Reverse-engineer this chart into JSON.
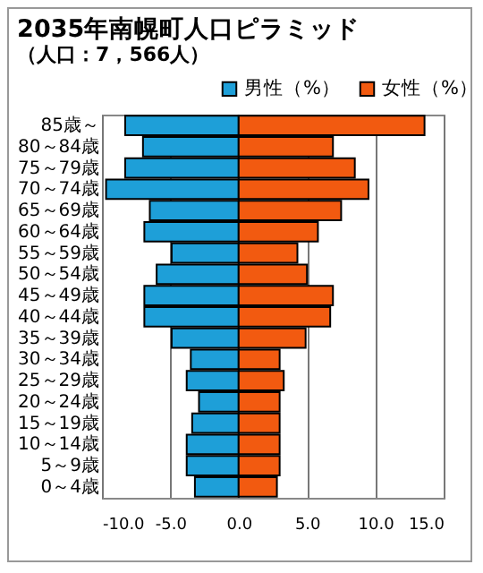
{
  "chart_data": {
    "type": "bar",
    "orientation": "horizontal",
    "title": "2035年南幌町人口ピラミッド",
    "subtitle": "（人口：7，566人）",
    "categories": [
      "85歳～",
      "80～84歳",
      "75～79歳",
      "70～74歳",
      "65～69歳",
      "60～64歳",
      "55～59歳",
      "50～54歳",
      "45～49歳",
      "40～44歳",
      "35～39歳",
      "30～34歳",
      "25～29歳",
      "20～24歳",
      "15～19歳",
      "10～14歳",
      "5～9歳",
      "0～4歳"
    ],
    "series": [
      {
        "name": "男性（%）",
        "color": "#1e9fd8",
        "values": [
          -8.3,
          -7.0,
          -8.3,
          -9.7,
          -6.5,
          -6.9,
          -4.9,
          -6.0,
          -6.9,
          -6.9,
          -4.9,
          -3.5,
          -3.8,
          -2.9,
          -3.4,
          -3.8,
          -3.8,
          -3.2
        ]
      },
      {
        "name": "女性（%）",
        "color": "#f25a10",
        "values": [
          13.6,
          6.9,
          8.5,
          9.5,
          7.5,
          5.8,
          4.3,
          5.0,
          6.9,
          6.7,
          4.9,
          3.0,
          3.3,
          3.0,
          3.0,
          3.0,
          3.0,
          2.8
        ]
      }
    ],
    "xlim": [
      -10,
      15
    ],
    "xticks": [
      {
        "value": -10,
        "label": "-10.0"
      },
      {
        "value": -5,
        "label": "-5.0"
      },
      {
        "value": 0,
        "label": "0.0"
      },
      {
        "value": 5,
        "label": "5.0"
      },
      {
        "value": 10,
        "label": "10.0"
      },
      {
        "value": 15,
        "label": "15.0"
      }
    ],
    "grid": "x",
    "legend": "top right",
    "stacked": true
  }
}
